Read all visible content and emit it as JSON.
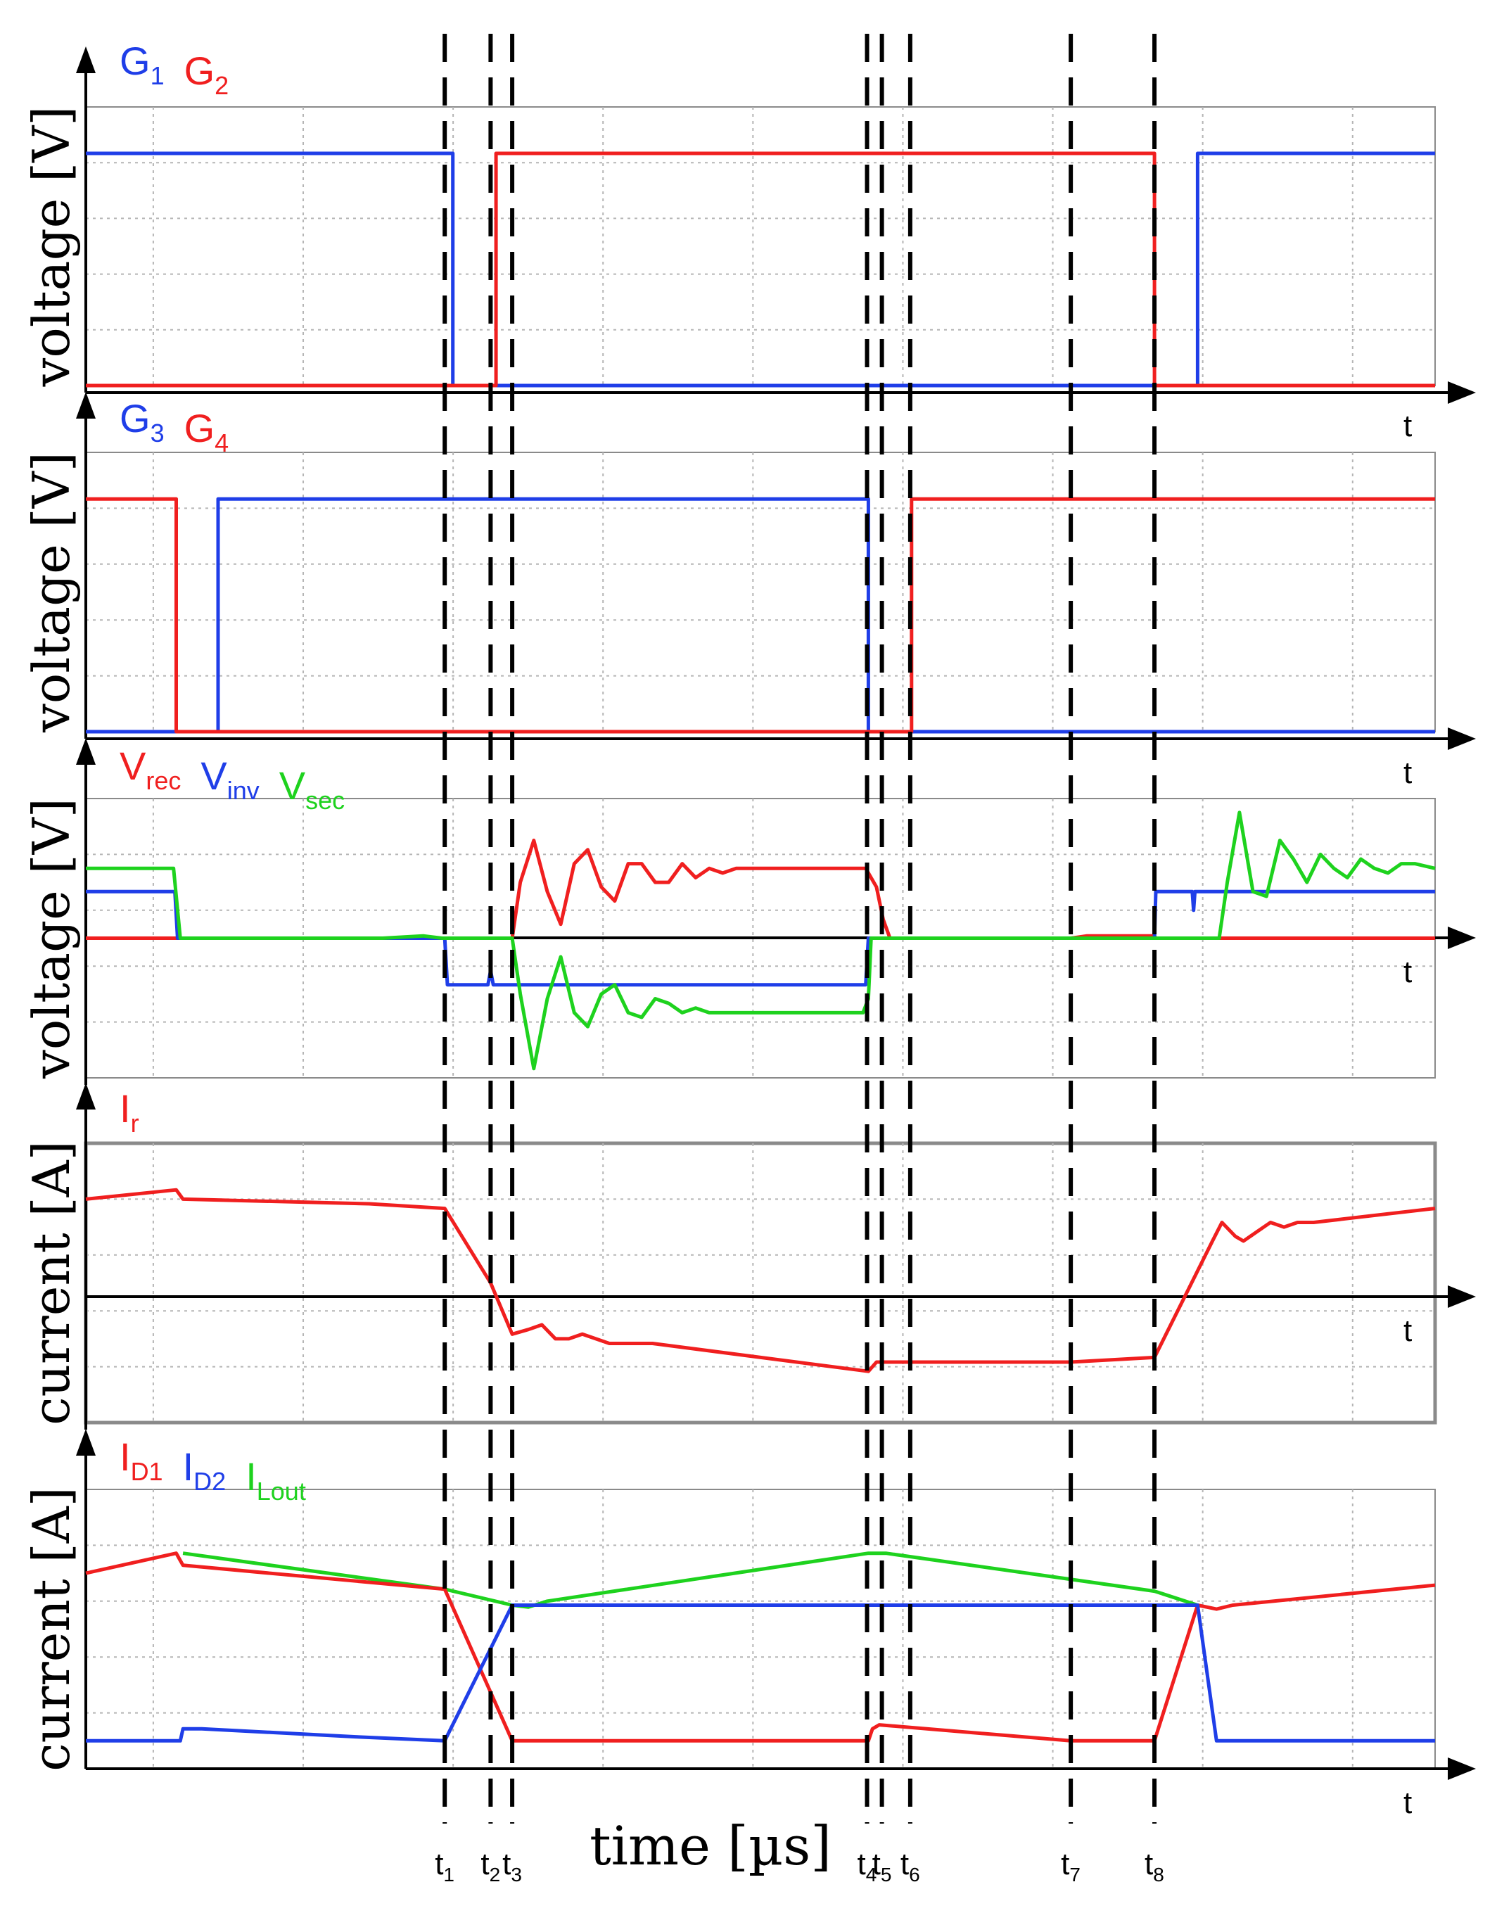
{
  "chart_data": {
    "type": "line",
    "x_title": "time [µs]",
    "x_range": [
      0,
      100
    ],
    "markers": [
      {
        "sym": "t",
        "sub": "1",
        "x": 26.6
      },
      {
        "sym": "t",
        "sub": "2",
        "x": 30.0
      },
      {
        "sym": "t",
        "sub": "3",
        "x": 31.6
      },
      {
        "sym": "t",
        "sub": "4",
        "x": 57.9
      },
      {
        "sym": "t",
        "sub": "5",
        "x": 59.0
      },
      {
        "sym": "t",
        "sub": "6",
        "x": 61.1
      },
      {
        "sym": "t",
        "sub": "7",
        "x": 73.0
      },
      {
        "sym": "t",
        "sub": "8",
        "x": 79.2
      }
    ],
    "panels": [
      {
        "id": "gates12",
        "ylabel": "voltage [V]",
        "xlabel": "t",
        "ylim": [
          0,
          6
        ],
        "show_zero_axis": false,
        "legend": [
          {
            "sym": "G",
            "sub": "1",
            "color": "#1f3ee8"
          },
          {
            "sym": "G",
            "sub": "2",
            "color": "#f01f1f"
          }
        ],
        "series": [
          {
            "color": "#1f3ee8",
            "points": [
              [
                0,
                5
              ],
              [
                27.2,
                5
              ],
              [
                27.2,
                0
              ],
              [
                82.4,
                0
              ],
              [
                82.4,
                5
              ],
              [
                100,
                5
              ]
            ]
          },
          {
            "color": "#f01f1f",
            "points": [
              [
                0,
                0
              ],
              [
                30.4,
                0
              ],
              [
                30.4,
                5
              ],
              [
                79.2,
                5
              ],
              [
                79.2,
                0
              ],
              [
                100,
                0
              ]
            ]
          }
        ]
      },
      {
        "id": "gates34",
        "ylabel": "voltage [V]",
        "xlabel": "t",
        "ylim": [
          0,
          6
        ],
        "show_zero_axis": false,
        "legend": [
          {
            "sym": "G",
            "sub": "3",
            "color": "#1f3ee8"
          },
          {
            "sym": "G",
            "sub": "4",
            "color": "#f01f1f"
          }
        ],
        "series": [
          {
            "color": "#1f3ee8",
            "points": [
              [
                0,
                0
              ],
              [
                9.8,
                0
              ],
              [
                9.8,
                5
              ],
              [
                58.0,
                5
              ],
              [
                58.0,
                0
              ],
              [
                100,
                0
              ]
            ]
          },
          {
            "color": "#f01f1f",
            "points": [
              [
                0,
                5
              ],
              [
                6.7,
                5
              ],
              [
                6.7,
                0
              ],
              [
                61.2,
                0
              ],
              [
                61.2,
                5
              ],
              [
                100,
                5
              ]
            ]
          }
        ]
      },
      {
        "id": "voltages",
        "ylabel": "voltage [V]",
        "xlabel": "t",
        "ylim": [
          -3,
          3
        ],
        "show_zero_axis": true,
        "legend": [
          {
            "sym": "V",
            "sub": "rec",
            "color": "#f01f1f"
          },
          {
            "sym": "V",
            "sub": "inv",
            "color": "#1f3ee8"
          },
          {
            "sym": "V",
            "sub": "sec",
            "color": "#1ed21e"
          }
        ],
        "series": [
          {
            "color": "#f01f1f",
            "points": [
              [
                0,
                0
              ],
              [
                26.6,
                0
              ],
              [
                31.6,
                0
              ],
              [
                32.2,
                1.2
              ],
              [
                33.2,
                2.1
              ],
              [
                34.2,
                1.0
              ],
              [
                35.2,
                0.3
              ],
              [
                36.2,
                1.6
              ],
              [
                37.2,
                1.9
              ],
              [
                38.2,
                1.1
              ],
              [
                39.2,
                0.8
              ],
              [
                40.2,
                1.6
              ],
              [
                41.2,
                1.6
              ],
              [
                42.2,
                1.2
              ],
              [
                43.2,
                1.2
              ],
              [
                44.2,
                1.6
              ],
              [
                45.2,
                1.3
              ],
              [
                46.2,
                1.5
              ],
              [
                47.2,
                1.4
              ],
              [
                48.2,
                1.5
              ],
              [
                49.2,
                1.5
              ],
              [
                50.2,
                1.5
              ],
              [
                57.8,
                1.5
              ],
              [
                58.6,
                1.1
              ],
              [
                59.1,
                0.4
              ],
              [
                59.6,
                0
              ],
              [
                73.0,
                0
              ],
              [
                74.2,
                0.05
              ],
              [
                79.2,
                0.05
              ],
              [
                79.3,
                0
              ],
              [
                100,
                0
              ]
            ]
          },
          {
            "color": "#1f3ee8",
            "points": [
              [
                0,
                1.0
              ],
              [
                6.6,
                1.0
              ],
              [
                6.8,
                0
              ],
              [
                26.6,
                0
              ],
              [
                26.8,
                -1.0
              ],
              [
                29.8,
                -1.0
              ],
              [
                30.0,
                -0.7
              ],
              [
                30.2,
                -1.0
              ],
              [
                57.8,
                -1.0
              ],
              [
                58.0,
                0
              ],
              [
                79.2,
                0
              ],
              [
                79.3,
                1.0
              ],
              [
                82.0,
                1.0
              ],
              [
                82.1,
                0.6
              ],
              [
                82.2,
                1.0
              ],
              [
                100,
                1.0
              ]
            ]
          },
          {
            "color": "#1ed21e",
            "points": [
              [
                0,
                1.5
              ],
              [
                6.5,
                1.5
              ],
              [
                7.0,
                0
              ],
              [
                22,
                0
              ],
              [
                25,
                0.05
              ],
              [
                26.4,
                0
              ],
              [
                31.6,
                0
              ],
              [
                32.2,
                -1.2
              ],
              [
                33.2,
                -2.8
              ],
              [
                34.2,
                -1.3
              ],
              [
                35.2,
                -0.4
              ],
              [
                36.2,
                -1.6
              ],
              [
                37.2,
                -1.9
              ],
              [
                38.2,
                -1.2
              ],
              [
                39.2,
                -1.0
              ],
              [
                40.2,
                -1.6
              ],
              [
                41.2,
                -1.7
              ],
              [
                42.2,
                -1.3
              ],
              [
                43.2,
                -1.4
              ],
              [
                44.2,
                -1.6
              ],
              [
                45.2,
                -1.5
              ],
              [
                46.2,
                -1.6
              ],
              [
                47.2,
                -1.6
              ],
              [
                48.2,
                -1.6
              ],
              [
                50.2,
                -1.6
              ],
              [
                57.6,
                -1.6
              ],
              [
                58.0,
                -1.3
              ],
              [
                58.2,
                0
              ],
              [
                84.0,
                0
              ],
              [
                84.6,
                1.2
              ],
              [
                85.5,
                2.7
              ],
              [
                86.5,
                1.0
              ],
              [
                87.5,
                0.9
              ],
              [
                88.5,
                2.1
              ],
              [
                89.5,
                1.7
              ],
              [
                90.5,
                1.2
              ],
              [
                91.5,
                1.8
              ],
              [
                92.5,
                1.5
              ],
              [
                93.5,
                1.3
              ],
              [
                94.5,
                1.7
              ],
              [
                95.5,
                1.5
              ],
              [
                96.5,
                1.4
              ],
              [
                97.5,
                1.6
              ],
              [
                98.5,
                1.6
              ],
              [
                100,
                1.5
              ]
            ]
          }
        ]
      },
      {
        "id": "ir",
        "ylabel": "current [A]",
        "xlabel": "t",
        "ylim": [
          -3,
          3
        ],
        "show_zero_axis": true,
        "legend": [
          {
            "sym": "I",
            "sub": "r",
            "color": "#f01f1f"
          }
        ],
        "series": [
          {
            "color": "#f01f1f",
            "points": [
              [
                0,
                1.8
              ],
              [
                6.7,
                2.0
              ],
              [
                7.2,
                1.8
              ],
              [
                21,
                1.7
              ],
              [
                26.6,
                1.6
              ],
              [
                30.0,
                0
              ],
              [
                31.6,
                -1.1
              ],
              [
                32.8,
                -1.0
              ],
              [
                33.8,
                -0.9
              ],
              [
                34.8,
                -1.2
              ],
              [
                35.8,
                -1.2
              ],
              [
                36.8,
                -1.1
              ],
              [
                37.8,
                -1.2
              ],
              [
                38.8,
                -1.3
              ],
              [
                42,
                -1.3
              ],
              [
                58.0,
                -1.9
              ],
              [
                58.6,
                -1.7
              ],
              [
                59.0,
                -1.7
              ],
              [
                73,
                -1.7
              ],
              [
                79.2,
                -1.6
              ],
              [
                83.5,
                0.9
              ],
              [
                84.2,
                1.3
              ],
              [
                85.2,
                1.0
              ],
              [
                85.8,
                0.9
              ],
              [
                86.8,
                1.1
              ],
              [
                87.8,
                1.3
              ],
              [
                88.8,
                1.2
              ],
              [
                89.8,
                1.3
              ],
              [
                91,
                1.3
              ],
              [
                100,
                1.6
              ]
            ]
          }
        ]
      },
      {
        "id": "diodes",
        "ylabel": "current [A]",
        "xlabel": "t",
        "ylim": [
          0,
          7
        ],
        "show_zero_axis": false,
        "legend": [
          {
            "sym": "I",
            "sub": "D1",
            "color": "#f01f1f"
          },
          {
            "sym": "I",
            "sub": "D2",
            "color": "#1f3ee8"
          },
          {
            "sym": "I",
            "sub": "Lout",
            "color": "#1ed21e"
          }
        ],
        "series": [
          {
            "color": "#1ed21e",
            "points": [
              [
                7.2,
                5.4
              ],
              [
                26.6,
                4.5
              ],
              [
                31.6,
                4.1
              ],
              [
                32.8,
                4.05
              ],
              [
                34.2,
                4.2
              ],
              [
                58.0,
                5.4
              ],
              [
                59.3,
                5.4
              ],
              [
                79.2,
                4.45
              ],
              [
                82.4,
                4.1
              ]
            ]
          },
          {
            "color": "#f01f1f",
            "points": [
              [
                0,
                4.9
              ],
              [
                6.7,
                5.4
              ],
              [
                7.2,
                5.1
              ],
              [
                26.6,
                4.5
              ],
              [
                31.6,
                0.7
              ],
              [
                58.0,
                0.7
              ],
              [
                58.3,
                1.0
              ],
              [
                58.8,
                1.1
              ],
              [
                73,
                0.7
              ],
              [
                79.2,
                0.7
              ],
              [
                82.4,
                4.1
              ],
              [
                83.8,
                4.0
              ],
              [
                85,
                4.1
              ],
              [
                100,
                4.6
              ]
            ]
          },
          {
            "color": "#1f3ee8",
            "points": [
              [
                0,
                0.7
              ],
              [
                7.0,
                0.7
              ],
              [
                7.2,
                1.0
              ],
              [
                8.6,
                1.0
              ],
              [
                20,
                0.8
              ],
              [
                26.6,
                0.7
              ],
              [
                31.6,
                4.1
              ],
              [
                82.4,
                4.1
              ],
              [
                83.8,
                0.7
              ],
              [
                100,
                0.7
              ]
            ]
          }
        ]
      }
    ]
  }
}
